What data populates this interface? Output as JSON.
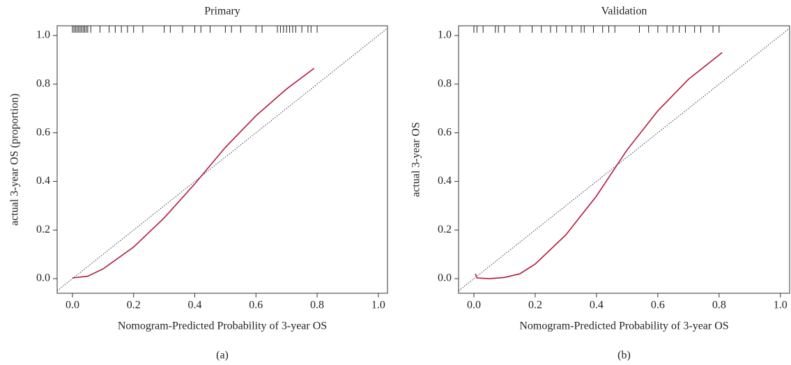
{
  "chart_data": [
    {
      "type": "line",
      "title": "Primary",
      "xlabel": "Nomogram-Predicted Probability of 3-year OS",
      "ylabel": "actual 3-year OS (proportion)",
      "caption": "(a)",
      "xlim": [
        -0.05,
        1.03
      ],
      "ylim": [
        -0.06,
        1.04
      ],
      "xticks": [
        {
          "value": 0,
          "label": "0.0"
        },
        {
          "value": 0.2,
          "label": "0.2"
        },
        {
          "value": 0.4,
          "label": "0.4"
        },
        {
          "value": 0.6,
          "label": "0.6"
        },
        {
          "value": 0.8,
          "label": "0.8"
        },
        {
          "value": 1,
          "label": "1.0"
        }
      ],
      "yticks": [
        {
          "value": 0,
          "label": "0.0"
        },
        {
          "value": 0.2,
          "label": "0.2"
        },
        {
          "value": 0.4,
          "label": "0.4"
        },
        {
          "value": 0.6,
          "label": "0.6"
        },
        {
          "value": 0.8,
          "label": "0.8"
        },
        {
          "value": 1,
          "label": "1.0"
        }
      ],
      "series": [
        {
          "color": "#b2183b",
          "x": [
            0,
            0.05,
            0.1,
            0.2,
            0.3,
            0.4,
            0.5,
            0.6,
            0.7,
            0.79
          ],
          "values": [
            0.003,
            0.01,
            0.04,
            0.13,
            0.25,
            0.39,
            0.54,
            0.67,
            0.78,
            0.865
          ]
        }
      ],
      "rug": [
        0,
        0.005,
        0.01,
        0.015,
        0.02,
        0.025,
        0.03,
        0.035,
        0.04,
        0.045,
        0.05,
        0.06,
        0.09,
        0.12,
        0.14,
        0.16,
        0.18,
        0.2,
        0.23,
        0.3,
        0.32,
        0.36,
        0.4,
        0.42,
        0.45,
        0.5,
        0.52,
        0.55,
        0.6,
        0.62,
        0.67,
        0.68,
        0.69,
        0.7,
        0.71,
        0.72,
        0.73,
        0.75,
        0.77,
        0.78,
        0.8
      ]
    },
    {
      "type": "line",
      "title": "Validation",
      "xlabel": "Nomogram-Predicted Probability of 3-year OS",
      "ylabel": "actual 3-year OS",
      "caption": "(b)",
      "xlim": [
        -0.05,
        1.03
      ],
      "ylim": [
        -0.06,
        1.04
      ],
      "xticks": [
        {
          "value": 0,
          "label": "0.0"
        },
        {
          "value": 0.2,
          "label": "0.2"
        },
        {
          "value": 0.4,
          "label": "0.4"
        },
        {
          "value": 0.6,
          "label": "0.6"
        },
        {
          "value": 0.8,
          "label": "0.8"
        },
        {
          "value": 1,
          "label": "1.0"
        }
      ],
      "yticks": [
        {
          "value": 0,
          "label": "0.0"
        },
        {
          "value": 0.2,
          "label": "0.2"
        },
        {
          "value": 0.4,
          "label": "0.4"
        },
        {
          "value": 0.6,
          "label": "0.6"
        },
        {
          "value": 0.8,
          "label": "0.8"
        },
        {
          "value": 1,
          "label": "1.0"
        }
      ],
      "series": [
        {
          "color": "#b2183b",
          "x": [
            0.005,
            0.01,
            0.05,
            0.1,
            0.15,
            0.2,
            0.3,
            0.4,
            0.5,
            0.6,
            0.7,
            0.81
          ],
          "values": [
            0.02,
            0.003,
            0,
            0.005,
            0.02,
            0.06,
            0.18,
            0.34,
            0.53,
            0.69,
            0.82,
            0.93
          ]
        }
      ],
      "rug": [
        0,
        0.01,
        0.03,
        0.07,
        0.08,
        0.1,
        0.15,
        0.19,
        0.22,
        0.25,
        0.27,
        0.3,
        0.32,
        0.35,
        0.36,
        0.39,
        0.42,
        0.44,
        0.46,
        0.54,
        0.57,
        0.6,
        0.63,
        0.65,
        0.67,
        0.69,
        0.72,
        0.74,
        0.78,
        0.8
      ]
    }
  ]
}
